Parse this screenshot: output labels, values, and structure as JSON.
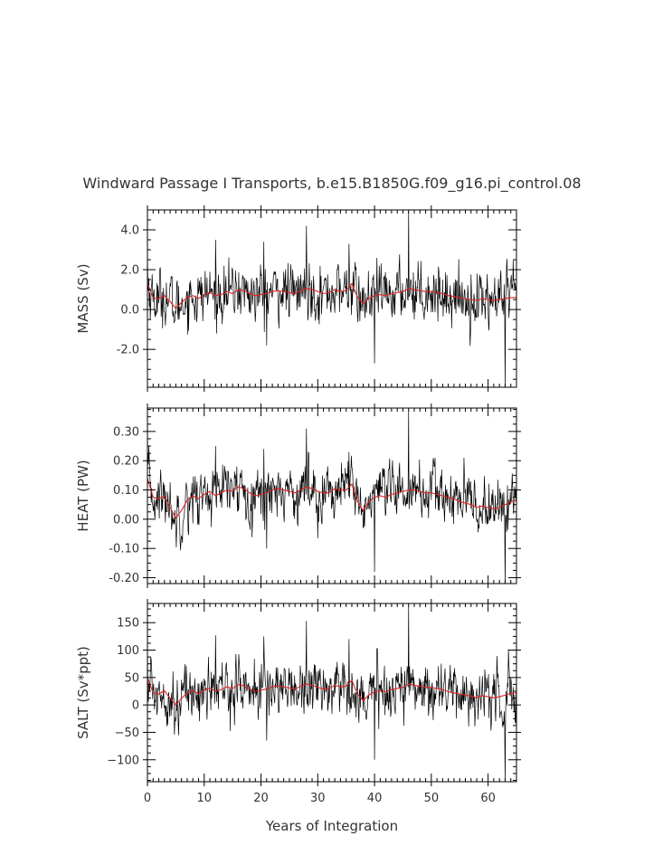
{
  "figure": {
    "title": "Windward Passage I Transports, b.e15.B1850G.f09_g16.pi_control.08",
    "xlabel": "Years of Integration"
  },
  "colors": {
    "raw": "#000000",
    "smoothed": "#dd2222",
    "axes": "#000000",
    "text": "#333333"
  },
  "chart_data": [
    {
      "type": "line",
      "id": "mass",
      "ylabel": "MASS (Sv)",
      "xlim": [
        0,
        65
      ],
      "ylim": [
        -3.9,
        5.0
      ],
      "x_ticks": [
        0,
        10,
        20,
        30,
        40,
        50,
        60
      ],
      "y_ticks": [
        -2.0,
        0.0,
        2.0,
        4.0
      ],
      "y_tick_labels": [
        "-2.0",
        "0.0",
        "2.0",
        "4.0"
      ],
      "x_tick_labels_shown": false,
      "smoothed_x": [
        0,
        1,
        2,
        3,
        4,
        5,
        6,
        7,
        8,
        9,
        10,
        11,
        12,
        13,
        14,
        15,
        16,
        17,
        18,
        19,
        20,
        21,
        22,
        23,
        24,
        25,
        26,
        27,
        28,
        29,
        30,
        31,
        32,
        33,
        34,
        35,
        36,
        37,
        38,
        39,
        40,
        41,
        42,
        43,
        44,
        45,
        46,
        47,
        48,
        49,
        50,
        51,
        52,
        53,
        54,
        55,
        56,
        57,
        58,
        59,
        60,
        61,
        62,
        63,
        64,
        65
      ],
      "smoothed_y": [
        1.3,
        0.6,
        0.55,
        0.7,
        0.4,
        0.05,
        0.35,
        0.6,
        0.7,
        0.55,
        0.75,
        0.85,
        0.7,
        0.75,
        0.9,
        0.8,
        1.0,
        0.95,
        0.8,
        0.7,
        0.75,
        0.8,
        0.9,
        0.95,
        0.9,
        0.85,
        0.8,
        0.95,
        1.05,
        1.0,
        0.9,
        0.8,
        0.85,
        1.0,
        0.9,
        0.95,
        1.3,
        0.6,
        0.3,
        0.55,
        0.7,
        0.75,
        0.7,
        0.8,
        0.85,
        0.9,
        1.05,
        1.0,
        0.95,
        0.9,
        0.9,
        0.85,
        0.8,
        0.7,
        0.65,
        0.6,
        0.55,
        0.5,
        0.45,
        0.55,
        0.5,
        0.45,
        0.5,
        0.55,
        0.6,
        0.6
      ],
      "spikes": [
        {
          "x": 46.0,
          "y": 4.95
        },
        {
          "x": 40.0,
          "y": -2.7
        },
        {
          "x": 63.0,
          "y": -3.9
        },
        {
          "x": 28.0,
          "y": 4.2
        },
        {
          "x": 21.0,
          "y": -1.8
        },
        {
          "x": 12.0,
          "y": 3.5
        },
        {
          "x": 20.5,
          "y": 3.4
        },
        {
          "x": 35.5,
          "y": 3.3
        },
        {
          "x": 0.0,
          "y": 3.0
        }
      ]
    },
    {
      "type": "line",
      "id": "heat",
      "ylabel": "HEAT (PW)",
      "xlim": [
        0,
        65
      ],
      "ylim": [
        -0.22,
        0.38
      ],
      "x_ticks": [
        0,
        10,
        20,
        30,
        40,
        50,
        60
      ],
      "y_ticks": [
        -0.2,
        -0.1,
        0.0,
        0.1,
        0.2,
        0.3
      ],
      "y_tick_labels": [
        "-0.20",
        "-0.10",
        "0.00",
        "0.10",
        "0.20",
        "0.30"
      ],
      "x_tick_labels_shown": false,
      "smoothed_x": [
        0,
        1,
        2,
        3,
        4,
        5,
        6,
        7,
        8,
        9,
        10,
        11,
        12,
        13,
        14,
        15,
        16,
        17,
        18,
        19,
        20,
        21,
        22,
        23,
        24,
        25,
        26,
        27,
        28,
        29,
        30,
        31,
        32,
        33,
        34,
        35,
        36,
        37,
        38,
        39,
        40,
        41,
        42,
        43,
        44,
        45,
        46,
        47,
        48,
        49,
        50,
        51,
        52,
        53,
        54,
        55,
        56,
        57,
        58,
        59,
        60,
        61,
        62,
        63,
        64,
        65
      ],
      "smoothed_y": [
        0.14,
        0.075,
        0.07,
        0.08,
        0.04,
        0.005,
        0.03,
        0.065,
        0.08,
        0.07,
        0.085,
        0.095,
        0.08,
        0.09,
        0.1,
        0.095,
        0.11,
        0.105,
        0.09,
        0.08,
        0.085,
        0.09,
        0.1,
        0.105,
        0.1,
        0.095,
        0.09,
        0.1,
        0.11,
        0.105,
        0.095,
        0.09,
        0.09,
        0.105,
        0.1,
        0.1,
        0.12,
        0.06,
        0.03,
        0.06,
        0.075,
        0.08,
        0.075,
        0.085,
        0.09,
        0.095,
        0.1,
        0.1,
        0.095,
        0.09,
        0.09,
        0.085,
        0.08,
        0.075,
        0.07,
        0.06,
        0.055,
        0.05,
        0.04,
        0.045,
        0.04,
        0.035,
        0.04,
        0.05,
        0.06,
        0.065
      ],
      "spikes": [
        {
          "x": 46.0,
          "y": 0.37
        },
        {
          "x": 40.0,
          "y": -0.18
        },
        {
          "x": 63.0,
          "y": -0.22
        },
        {
          "x": 28.0,
          "y": 0.31
        },
        {
          "x": 21.0,
          "y": -0.1
        },
        {
          "x": 12.0,
          "y": 0.25
        },
        {
          "x": 20.5,
          "y": 0.24
        },
        {
          "x": 35.5,
          "y": 0.23
        },
        {
          "x": 0.0,
          "y": 0.22
        }
      ]
    },
    {
      "type": "line",
      "id": "salt",
      "ylabel": "SALT (Sv*ppt)",
      "xlim": [
        0,
        65
      ],
      "ylim": [
        -140,
        185
      ],
      "x_ticks": [
        0,
        10,
        20,
        30,
        40,
        50,
        60
      ],
      "y_ticks": [
        -100,
        -50,
        0,
        50,
        100,
        150
      ],
      "y_tick_labels": [
        "−100",
        "−50",
        "0",
        "50",
        "100",
        "150"
      ],
      "x_tick_labels_shown": true,
      "x_tick_labels": [
        "0",
        "10",
        "20",
        "30",
        "40",
        "50",
        "60"
      ],
      "smoothed_x": [
        0,
        1,
        2,
        3,
        4,
        5,
        6,
        7,
        8,
        9,
        10,
        11,
        12,
        13,
        14,
        15,
        16,
        17,
        18,
        19,
        20,
        21,
        22,
        23,
        24,
        25,
        26,
        27,
        28,
        29,
        30,
        31,
        32,
        33,
        34,
        35,
        36,
        37,
        38,
        39,
        40,
        41,
        42,
        43,
        44,
        45,
        46,
        47,
        48,
        49,
        50,
        51,
        52,
        53,
        54,
        55,
        56,
        57,
        58,
        59,
        60,
        61,
        62,
        63,
        64,
        65
      ],
      "smoothed_y": [
        50,
        22,
        20,
        26,
        12,
        0,
        12,
        22,
        26,
        20,
        27,
        31,
        25,
        28,
        33,
        30,
        37,
        35,
        29,
        25,
        27,
        29,
        33,
        35,
        33,
        31,
        29,
        34,
        38,
        36,
        32,
        29,
        30,
        36,
        33,
        34,
        45,
        20,
        8,
        18,
        24,
        26,
        24,
        28,
        30,
        32,
        38,
        36,
        34,
        32,
        32,
        30,
        28,
        24,
        22,
        20,
        18,
        16,
        13,
        17,
        15,
        13,
        15,
        18,
        21,
        22
      ],
      "spikes": [
        {
          "x": 46.0,
          "y": 180
        },
        {
          "x": 40.0,
          "y": -100
        },
        {
          "x": 63.0,
          "y": -140
        },
        {
          "x": 28.0,
          "y": 153
        },
        {
          "x": 21.0,
          "y": -65
        },
        {
          "x": 12.0,
          "y": 127
        },
        {
          "x": 20.5,
          "y": 125
        },
        {
          "x": 35.5,
          "y": 120
        },
        {
          "x": 0.0,
          "y": 110
        }
      ]
    }
  ]
}
